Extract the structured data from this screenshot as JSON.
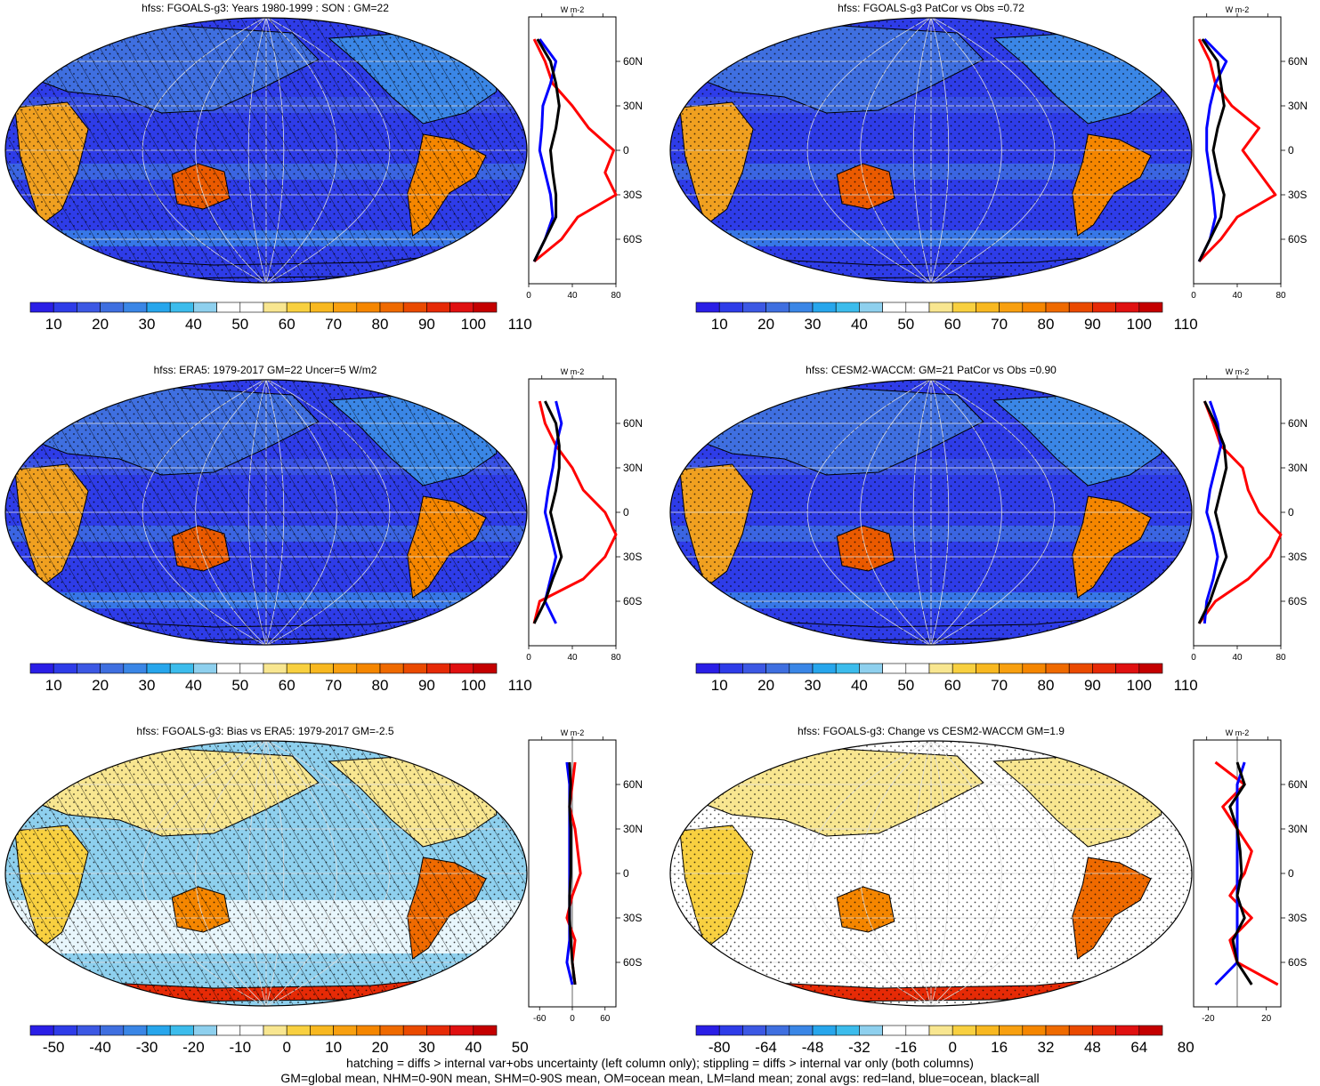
{
  "chart_data": [
    {
      "type": "heatmap",
      "title": "hfss: FGOALS-g3: Years 1980-1999 : SON : GM=22",
      "colorbar_ticks": [
        "10",
        "20",
        "30",
        "40",
        "50",
        "60",
        "70",
        "80",
        "90",
        "100",
        "110"
      ],
      "colorbar_colors": [
        "#2a1ee6",
        "#2e3ce8",
        "#3c58e4",
        "#3f6fe0",
        "#3a86e6",
        "#27a6ec",
        "#3cbcec",
        "#8ed0ee",
        "#ffffff",
        "#ffffff",
        "#f8e690",
        "#f8d040",
        "#f8b820",
        "#f8a010",
        "#f58600",
        "#ef6a00",
        "#ea4a00",
        "#e62a06",
        "#e01010",
        "#c40000"
      ],
      "zonal": {
        "ylabels": [
          "60N",
          "30N",
          "0",
          "30S",
          "60S"
        ],
        "ylabel_lats": [
          60,
          30,
          0,
          -30,
          -60
        ],
        "xticks": [
          "0",
          "40",
          "80"
        ],
        "xlim": [
          0,
          80
        ],
        "unit": "W m-2",
        "series": [
          {
            "name": "land",
            "color": "#ff0000",
            "lat": [
              75,
              60,
              45,
              30,
              15,
              0,
              -15,
              -30,
              -45,
              -60,
              -75
            ],
            "values": [
              5,
              15,
              22,
              40,
              55,
              78,
              70,
              80,
              45,
              30,
              5
            ]
          },
          {
            "name": "ocean",
            "color": "#0000ff",
            "lat": [
              75,
              60,
              45,
              30,
              15,
              0,
              -15,
              -30,
              -45,
              -60,
              -75
            ],
            "values": [
              10,
              25,
              20,
              13,
              12,
              10,
              15,
              20,
              22,
              15,
              5
            ]
          },
          {
            "name": "all",
            "color": "#000000",
            "lat": [
              75,
              60,
              45,
              30,
              15,
              0,
              -15,
              -30,
              -45,
              -60,
              -75
            ],
            "values": [
              8,
              20,
              25,
              28,
              25,
              20,
              22,
              25,
              25,
              15,
              5
            ]
          }
        ]
      }
    },
    {
      "type": "heatmap",
      "title": "hfss: FGOALS-g3 PatCor vs Obs =0.72",
      "colorbar_ticks": [
        "10",
        "20",
        "30",
        "40",
        "50",
        "60",
        "70",
        "80",
        "90",
        "100",
        "110"
      ],
      "colorbar_colors": [
        "#2a1ee6",
        "#2e3ce8",
        "#3c58e4",
        "#3f6fe0",
        "#3a86e6",
        "#27a6ec",
        "#3cbcec",
        "#8ed0ee",
        "#ffffff",
        "#ffffff",
        "#f8e690",
        "#f8d040",
        "#f8b820",
        "#f8a010",
        "#f58600",
        "#ef6a00",
        "#ea4a00",
        "#e62a06",
        "#e01010",
        "#c40000"
      ],
      "zonal": {
        "ylabels": [
          "60N",
          "30N",
          "0",
          "30S",
          "60S"
        ],
        "ylabel_lats": [
          60,
          30,
          0,
          -30,
          -60
        ],
        "xticks": [
          "0",
          "40",
          "80"
        ],
        "xlim": [
          0,
          80
        ],
        "unit": "W m-2",
        "series": [
          {
            "name": "land",
            "color": "#ff0000",
            "lat": [
              75,
              60,
              45,
              30,
              15,
              0,
              -15,
              -30,
              -45,
              -60,
              -75
            ],
            "values": [
              5,
              15,
              20,
              35,
              60,
              45,
              60,
              75,
              40,
              25,
              5
            ]
          },
          {
            "name": "ocean",
            "color": "#0000ff",
            "lat": [
              75,
              60,
              45,
              30,
              15,
              0,
              -15,
              -30,
              -45,
              -60,
              -75
            ],
            "values": [
              10,
              30,
              20,
              15,
              12,
              12,
              15,
              18,
              20,
              15,
              5
            ]
          },
          {
            "name": "all",
            "color": "#000000",
            "lat": [
              75,
              60,
              45,
              30,
              15,
              0,
              -15,
              -30,
              -45,
              -60,
              -75
            ],
            "values": [
              8,
              22,
              25,
              28,
              22,
              18,
              22,
              28,
              25,
              15,
              5
            ]
          }
        ]
      }
    },
    {
      "type": "heatmap",
      "title": "hfss: ERA5: 1979-2017 GM=22 Uncer=5 W/m2",
      "colorbar_ticks": [
        "10",
        "20",
        "30",
        "40",
        "50",
        "60",
        "70",
        "80",
        "90",
        "100",
        "110"
      ],
      "colorbar_colors": [
        "#2a1ee6",
        "#2e3ce8",
        "#3c58e4",
        "#3f6fe0",
        "#3a86e6",
        "#27a6ec",
        "#3cbcec",
        "#8ed0ee",
        "#ffffff",
        "#ffffff",
        "#f8e690",
        "#f8d040",
        "#f8b820",
        "#f8a010",
        "#f58600",
        "#ef6a00",
        "#ea4a00",
        "#e62a06",
        "#e01010",
        "#c40000"
      ],
      "zonal": {
        "ylabels": [
          "60N",
          "30N",
          "0",
          "30S",
          "60S"
        ],
        "ylabel_lats": [
          60,
          30,
          0,
          -30,
          -60
        ],
        "xticks": [
          "0",
          "40",
          "80"
        ],
        "xlim": [
          0,
          80
        ],
        "unit": "W m-2",
        "series": [
          {
            "name": "land",
            "color": "#ff0000",
            "lat": [
              75,
              60,
              45,
              30,
              15,
              0,
              -15,
              -30,
              -45,
              -60,
              -75
            ],
            "values": [
              10,
              15,
              25,
              40,
              50,
              70,
              80,
              70,
              50,
              10,
              5
            ]
          },
          {
            "name": "ocean",
            "color": "#0000ff",
            "lat": [
              75,
              60,
              45,
              30,
              15,
              0,
              -15,
              -30,
              -45,
              -60,
              -75
            ],
            "values": [
              25,
              30,
              25,
              22,
              18,
              15,
              20,
              25,
              20,
              15,
              25
            ]
          },
          {
            "name": "all",
            "color": "#000000",
            "lat": [
              75,
              60,
              45,
              30,
              15,
              0,
              -15,
              -30,
              -45,
              -60,
              -75
            ],
            "values": [
              15,
              25,
              28,
              28,
              25,
              20,
              25,
              30,
              22,
              15,
              5
            ]
          }
        ]
      }
    },
    {
      "type": "heatmap",
      "title": "hfss: CESM2-WACCM: GM=21 PatCor vs Obs =0.90",
      "colorbar_ticks": [
        "10",
        "20",
        "30",
        "40",
        "50",
        "60",
        "70",
        "80",
        "90",
        "100",
        "110"
      ],
      "colorbar_colors": [
        "#2a1ee6",
        "#2e3ce8",
        "#3c58e4",
        "#3f6fe0",
        "#3a86e6",
        "#27a6ec",
        "#3cbcec",
        "#8ed0ee",
        "#ffffff",
        "#ffffff",
        "#f8e690",
        "#f8d040",
        "#f8b820",
        "#f8a010",
        "#f58600",
        "#ef6a00",
        "#ea4a00",
        "#e62a06",
        "#e01010",
        "#c40000"
      ],
      "zonal": {
        "ylabels": [
          "60N",
          "30N",
          "0",
          "30S",
          "60S"
        ],
        "ylabel_lats": [
          60,
          30,
          0,
          -30,
          -60
        ],
        "xticks": [
          "0",
          "40",
          "80"
        ],
        "xlim": [
          0,
          80
        ],
        "unit": "W m-2",
        "series": [
          {
            "name": "land",
            "color": "#ff0000",
            "lat": [
              75,
              60,
              45,
              30,
              15,
              0,
              -15,
              -30,
              -45,
              -60,
              -75
            ],
            "values": [
              10,
              18,
              25,
              45,
              50,
              60,
              80,
              70,
              50,
              20,
              5
            ]
          },
          {
            "name": "ocean",
            "color": "#0000ff",
            "lat": [
              75,
              60,
              45,
              30,
              15,
              0,
              -15,
              -30,
              -45,
              -60,
              -75
            ],
            "values": [
              15,
              22,
              25,
              20,
              15,
              12,
              18,
              22,
              18,
              12,
              10
            ]
          },
          {
            "name": "all",
            "color": "#000000",
            "lat": [
              75,
              60,
              45,
              30,
              15,
              0,
              -15,
              -30,
              -45,
              -60,
              -75
            ],
            "values": [
              10,
              20,
              28,
              30,
              25,
              20,
              25,
              30,
              22,
              15,
              5
            ]
          }
        ]
      }
    },
    {
      "type": "heatmap",
      "title": "hfss: FGOALS-g3: Bias vs ERA5: 1979-2017  GM=-2.5",
      "colorbar_ticks": [
        "-50",
        "-40",
        "-30",
        "-20",
        "-10",
        "0",
        "10",
        "20",
        "30",
        "40",
        "50"
      ],
      "colorbar_colors": [
        "#2a1ee6",
        "#2e3ce8",
        "#3c58e4",
        "#3f6fe0",
        "#3a86e6",
        "#27a6ec",
        "#3cbcec",
        "#8ed0ee",
        "#ffffff",
        "#ffffff",
        "#f8e690",
        "#f8d040",
        "#f8b820",
        "#f8a010",
        "#f58600",
        "#ef6a00",
        "#ea4a00",
        "#e62a06",
        "#e01010",
        "#c40000"
      ],
      "zonal": {
        "ylabels": [
          "60N",
          "30N",
          "0",
          "30S",
          "60S"
        ],
        "ylabel_lats": [
          60,
          30,
          0,
          -30,
          -60
        ],
        "xticks": [
          "-60",
          "0",
          "60"
        ],
        "xlim": [
          -80,
          80
        ],
        "unit": "W m-2",
        "series": [
          {
            "name": "land",
            "color": "#ff0000",
            "lat": [
              75,
              60,
              45,
              30,
              15,
              0,
              -15,
              -30,
              -45,
              -60,
              -75
            ],
            "values": [
              5,
              0,
              -5,
              5,
              10,
              15,
              0,
              -10,
              5,
              0,
              5
            ]
          },
          {
            "name": "ocean",
            "color": "#0000ff",
            "lat": [
              75,
              60,
              45,
              30,
              15,
              0,
              -15,
              -30,
              -45,
              -60,
              -75
            ],
            "values": [
              -10,
              -5,
              -5,
              -5,
              -5,
              -5,
              -5,
              -5,
              -5,
              -10,
              0
            ]
          },
          {
            "name": "all",
            "color": "#000000",
            "lat": [
              75,
              60,
              45,
              30,
              15,
              0,
              -15,
              -30,
              -45,
              -60,
              -75
            ],
            "values": [
              -5,
              -3,
              -5,
              -3,
              -3,
              -3,
              -5,
              -5,
              -3,
              0,
              5
            ]
          }
        ]
      }
    },
    {
      "type": "heatmap",
      "title": "hfss: FGOALS-g3: Change vs CESM2-WACCM GM=1.9",
      "colorbar_ticks": [
        "-80",
        "-64",
        "-48",
        "-32",
        "-16",
        "0",
        "16",
        "32",
        "48",
        "64",
        "80"
      ],
      "colorbar_colors": [
        "#2a1ee6",
        "#2e3ce8",
        "#3c58e4",
        "#3f6fe0",
        "#3a86e6",
        "#27a6ec",
        "#3cbcec",
        "#8ed0ee",
        "#ffffff",
        "#ffffff",
        "#f8e690",
        "#f8d040",
        "#f8b820",
        "#f8a010",
        "#f58600",
        "#ef6a00",
        "#ea4a00",
        "#e62a06",
        "#e01010",
        "#c40000"
      ],
      "zonal": {
        "ylabels": [
          "60N",
          "30N",
          "0",
          "30S",
          "60S"
        ],
        "ylabel_lats": [
          60,
          30,
          0,
          -30,
          -60
        ],
        "xticks": [
          "-20",
          "20"
        ],
        "xlim": [
          -30,
          30
        ],
        "unit": "W m-2",
        "series": [
          {
            "name": "land",
            "color": "#ff0000",
            "lat": [
              75,
              60,
              45,
              30,
              15,
              0,
              -15,
              -30,
              -45,
              -60,
              -75
            ],
            "values": [
              -15,
              5,
              -10,
              0,
              10,
              5,
              -5,
              10,
              -5,
              0,
              28
            ]
          },
          {
            "name": "ocean",
            "color": "#0000ff",
            "lat": [
              75,
              60,
              45,
              30,
              15,
              0,
              -15,
              -30,
              -45,
              -60,
              -75
            ],
            "values": [
              5,
              0,
              0,
              0,
              0,
              0,
              0,
              0,
              0,
              0,
              -15
            ]
          },
          {
            "name": "all",
            "color": "#000000",
            "lat": [
              75,
              60,
              45,
              30,
              15,
              0,
              -15,
              -30,
              -45,
              -60,
              -75
            ],
            "values": [
              0,
              5,
              -5,
              0,
              2,
              3,
              0,
              5,
              -3,
              0,
              10
            ]
          }
        ]
      }
    }
  ],
  "footer": {
    "line1": "hatching = diffs > internal var+obs uncertainty (left column only); stippling = diffs > internal var only (both columns)",
    "line2": "GM=global mean, NHM=0-90N mean, SHM=0-90S mean, OM=ocean mean, LM=land mean; zonal avgs: red=land, blue=ocean, black=all"
  }
}
